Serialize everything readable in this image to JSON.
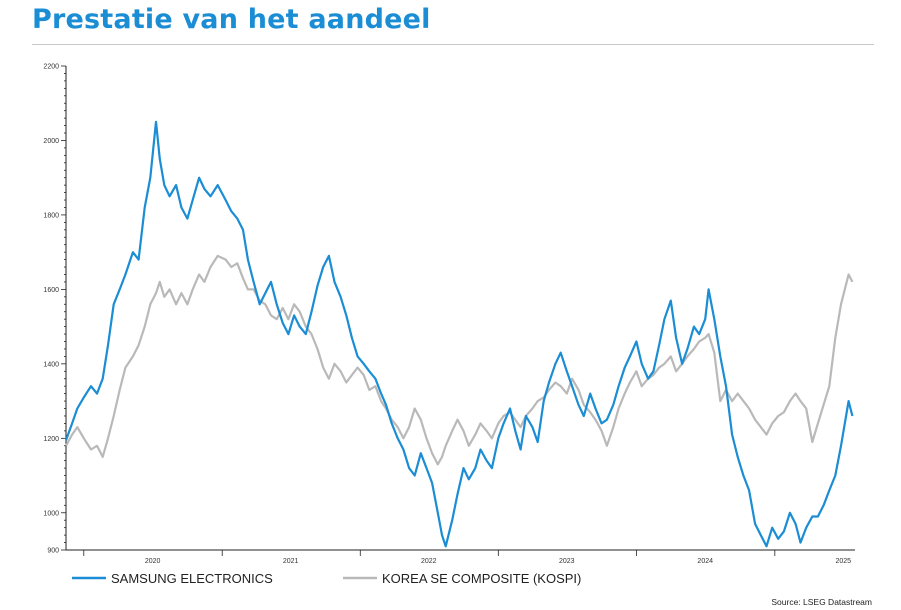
{
  "header": {
    "title": "Prestatie van het aandeel"
  },
  "chart_data": {
    "type": "line",
    "y_ticks": [
      "900",
      "1000",
      "1200",
      "1400",
      "1600",
      "1800",
      "2000",
      "2200"
    ],
    "ylim": [
      900,
      2200
    ],
    "x_ticks": [
      "2020",
      "2021",
      "2022",
      "2023",
      "2024",
      "2025"
    ],
    "xlim": [
      "2019-11-15",
      "2025-08-01"
    ],
    "grid": false,
    "legend_placement": "bottom-left",
    "source": "Source: LSEG Datastream",
    "colors": {
      "samsung": "#1a8dd4",
      "kospi": "#b9b9b9"
    },
    "series": [
      {
        "name": "SAMSUNG ELECTRONICS",
        "color": "#1a8dd4",
        "points": [
          [
            "2019-11-15",
            1195
          ],
          [
            "2019-12-01",
            1240
          ],
          [
            "2019-12-15",
            1280
          ],
          [
            "2020-01-01",
            1310
          ],
          [
            "2020-01-20",
            1340
          ],
          [
            "2020-02-05",
            1320
          ],
          [
            "2020-02-20",
            1360
          ],
          [
            "2020-03-05",
            1450
          ],
          [
            "2020-03-20",
            1560
          ],
          [
            "2020-04-05",
            1600
          ],
          [
            "2020-04-20",
            1640
          ],
          [
            "2020-05-10",
            1700
          ],
          [
            "2020-05-25",
            1680
          ],
          [
            "2020-06-10",
            1820
          ],
          [
            "2020-06-25",
            1900
          ],
          [
            "2020-07-10",
            2050
          ],
          [
            "2020-07-20",
            1950
          ],
          [
            "2020-08-01",
            1880
          ],
          [
            "2020-08-15",
            1850
          ],
          [
            "2020-09-01",
            1880
          ],
          [
            "2020-09-15",
            1820
          ],
          [
            "2020-10-01",
            1790
          ],
          [
            "2020-10-15",
            1840
          ],
          [
            "2020-11-01",
            1900
          ],
          [
            "2020-11-15",
            1870
          ],
          [
            "2020-12-01",
            1850
          ],
          [
            "2020-12-20",
            1880
          ],
          [
            "2021-01-10",
            1840
          ],
          [
            "2021-01-25",
            1810
          ],
          [
            "2021-02-10",
            1790
          ],
          [
            "2021-02-25",
            1760
          ],
          [
            "2021-03-10",
            1680
          ],
          [
            "2021-03-25",
            1620
          ],
          [
            "2021-04-10",
            1560
          ],
          [
            "2021-04-25",
            1590
          ],
          [
            "2021-05-10",
            1620
          ],
          [
            "2021-05-25",
            1560
          ],
          [
            "2021-06-10",
            1510
          ],
          [
            "2021-06-25",
            1480
          ],
          [
            "2021-07-10",
            1530
          ],
          [
            "2021-07-25",
            1500
          ],
          [
            "2021-08-10",
            1480
          ],
          [
            "2021-08-25",
            1540
          ],
          [
            "2021-09-10",
            1610
          ],
          [
            "2021-09-25",
            1660
          ],
          [
            "2021-10-10",
            1690
          ],
          [
            "2021-10-25",
            1620
          ],
          [
            "2021-11-10",
            1580
          ],
          [
            "2021-11-25",
            1530
          ],
          [
            "2021-12-10",
            1470
          ],
          [
            "2021-12-25",
            1420
          ],
          [
            "2022-01-10",
            1400
          ],
          [
            "2022-01-25",
            1380
          ],
          [
            "2022-02-10",
            1360
          ],
          [
            "2022-02-25",
            1320
          ],
          [
            "2022-03-10",
            1290
          ],
          [
            "2022-03-25",
            1240
          ],
          [
            "2022-04-10",
            1200
          ],
          [
            "2022-04-25",
            1170
          ],
          [
            "2022-05-10",
            1120
          ],
          [
            "2022-05-25",
            1100
          ],
          [
            "2022-06-10",
            1160
          ],
          [
            "2022-06-25",
            1120
          ],
          [
            "2022-07-10",
            1080
          ],
          [
            "2022-07-25",
            1000
          ],
          [
            "2022-08-05",
            940
          ],
          [
            "2022-08-15",
            910
          ],
          [
            "2022-09-01",
            980
          ],
          [
            "2022-09-15",
            1050
          ],
          [
            "2022-10-01",
            1120
          ],
          [
            "2022-10-15",
            1090
          ],
          [
            "2022-11-01",
            1120
          ],
          [
            "2022-11-15",
            1170
          ],
          [
            "2022-12-01",
            1140
          ],
          [
            "2022-12-15",
            1120
          ],
          [
            "2023-01-01",
            1200
          ],
          [
            "2023-01-15",
            1240
          ],
          [
            "2023-02-01",
            1280
          ],
          [
            "2023-02-15",
            1220
          ],
          [
            "2023-03-01",
            1170
          ],
          [
            "2023-03-15",
            1260
          ],
          [
            "2023-04-01",
            1230
          ],
          [
            "2023-04-15",
            1190
          ],
          [
            "2023-05-01",
            1300
          ],
          [
            "2023-05-15",
            1350
          ],
          [
            "2023-06-01",
            1400
          ],
          [
            "2023-06-15",
            1430
          ],
          [
            "2023-07-01",
            1380
          ],
          [
            "2023-07-15",
            1340
          ],
          [
            "2023-08-01",
            1290
          ],
          [
            "2023-08-15",
            1260
          ],
          [
            "2023-09-01",
            1320
          ],
          [
            "2023-09-15",
            1280
          ],
          [
            "2023-10-01",
            1240
          ],
          [
            "2023-10-15",
            1250
          ],
          [
            "2023-11-01",
            1290
          ],
          [
            "2023-11-15",
            1340
          ],
          [
            "2023-12-01",
            1390
          ],
          [
            "2023-12-15",
            1420
          ],
          [
            "2024-01-01",
            1460
          ],
          [
            "2024-01-15",
            1400
          ],
          [
            "2024-02-01",
            1360
          ],
          [
            "2024-02-15",
            1380
          ],
          [
            "2024-03-01",
            1450
          ],
          [
            "2024-03-15",
            1520
          ],
          [
            "2024-04-01",
            1570
          ],
          [
            "2024-04-15",
            1470
          ],
          [
            "2024-05-01",
            1400
          ],
          [
            "2024-05-15",
            1440
          ],
          [
            "2024-06-01",
            1500
          ],
          [
            "2024-06-15",
            1480
          ],
          [
            "2024-07-01",
            1520
          ],
          [
            "2024-07-10",
            1600
          ],
          [
            "2024-07-25",
            1520
          ],
          [
            "2024-08-10",
            1420
          ],
          [
            "2024-08-25",
            1340
          ],
          [
            "2024-09-10",
            1210
          ],
          [
            "2024-09-25",
            1150
          ],
          [
            "2024-10-10",
            1100
          ],
          [
            "2024-10-25",
            1060
          ],
          [
            "2024-11-10",
            970
          ],
          [
            "2024-11-25",
            940
          ],
          [
            "2024-12-10",
            910
          ],
          [
            "2024-12-25",
            960
          ],
          [
            "2025-01-10",
            930
          ],
          [
            "2025-01-25",
            950
          ],
          [
            "2025-02-10",
            1000
          ],
          [
            "2025-02-25",
            970
          ],
          [
            "2025-03-10",
            920
          ],
          [
            "2025-03-25",
            960
          ],
          [
            "2025-04-10",
            990
          ],
          [
            "2025-04-25",
            990
          ],
          [
            "2025-05-10",
            1020
          ],
          [
            "2025-05-25",
            1060
          ],
          [
            "2025-06-10",
            1100
          ],
          [
            "2025-06-25",
            1180
          ],
          [
            "2025-07-05",
            1240
          ],
          [
            "2025-07-15",
            1300
          ],
          [
            "2025-07-25",
            1260
          ]
        ]
      },
      {
        "name": "KOREA SE COMPOSITE (KOSPI)",
        "color": "#b9b9b9",
        "points": [
          [
            "2019-11-15",
            1180
          ],
          [
            "2019-12-01",
            1210
          ],
          [
            "2019-12-15",
            1230
          ],
          [
            "2020-01-01",
            1200
          ],
          [
            "2020-01-20",
            1170
          ],
          [
            "2020-02-05",
            1180
          ],
          [
            "2020-02-20",
            1150
          ],
          [
            "2020-03-05",
            1200
          ],
          [
            "2020-03-20",
            1260
          ],
          [
            "2020-04-05",
            1330
          ],
          [
            "2020-04-20",
            1390
          ],
          [
            "2020-05-10",
            1420
          ],
          [
            "2020-05-25",
            1450
          ],
          [
            "2020-06-10",
            1500
          ],
          [
            "2020-06-25",
            1560
          ],
          [
            "2020-07-10",
            1590
          ],
          [
            "2020-07-20",
            1620
          ],
          [
            "2020-08-01",
            1580
          ],
          [
            "2020-08-15",
            1600
          ],
          [
            "2020-09-01",
            1560
          ],
          [
            "2020-09-15",
            1590
          ],
          [
            "2020-10-01",
            1560
          ],
          [
            "2020-10-15",
            1600
          ],
          [
            "2020-11-01",
            1640
          ],
          [
            "2020-11-15",
            1620
          ],
          [
            "2020-12-01",
            1660
          ],
          [
            "2020-12-20",
            1690
          ],
          [
            "2021-01-10",
            1680
          ],
          [
            "2021-01-25",
            1660
          ],
          [
            "2021-02-10",
            1670
          ],
          [
            "2021-02-25",
            1630
          ],
          [
            "2021-03-10",
            1600
          ],
          [
            "2021-03-25",
            1600
          ],
          [
            "2021-04-10",
            1570
          ],
          [
            "2021-04-25",
            1560
          ],
          [
            "2021-05-10",
            1530
          ],
          [
            "2021-05-25",
            1520
          ],
          [
            "2021-06-10",
            1550
          ],
          [
            "2021-06-25",
            1520
          ],
          [
            "2021-07-10",
            1560
          ],
          [
            "2021-07-25",
            1540
          ],
          [
            "2021-08-10",
            1500
          ],
          [
            "2021-08-25",
            1480
          ],
          [
            "2021-09-10",
            1440
          ],
          [
            "2021-09-25",
            1390
          ],
          [
            "2021-10-10",
            1360
          ],
          [
            "2021-10-25",
            1400
          ],
          [
            "2021-11-10",
            1380
          ],
          [
            "2021-11-25",
            1350
          ],
          [
            "2021-12-10",
            1370
          ],
          [
            "2021-12-25",
            1390
          ],
          [
            "2022-01-10",
            1370
          ],
          [
            "2022-01-25",
            1330
          ],
          [
            "2022-02-10",
            1340
          ],
          [
            "2022-02-25",
            1300
          ],
          [
            "2022-03-10",
            1280
          ],
          [
            "2022-03-25",
            1250
          ],
          [
            "2022-04-10",
            1230
          ],
          [
            "2022-04-25",
            1200
          ],
          [
            "2022-05-10",
            1230
          ],
          [
            "2022-05-25",
            1280
          ],
          [
            "2022-06-10",
            1250
          ],
          [
            "2022-06-25",
            1200
          ],
          [
            "2022-07-10",
            1160
          ],
          [
            "2022-07-25",
            1130
          ],
          [
            "2022-08-05",
            1150
          ],
          [
            "2022-08-15",
            1180
          ],
          [
            "2022-09-01",
            1220
          ],
          [
            "2022-09-15",
            1250
          ],
          [
            "2022-10-01",
            1220
          ],
          [
            "2022-10-15",
            1180
          ],
          [
            "2022-11-01",
            1210
          ],
          [
            "2022-11-15",
            1240
          ],
          [
            "2022-12-01",
            1220
          ],
          [
            "2022-12-15",
            1200
          ],
          [
            "2023-01-01",
            1240
          ],
          [
            "2023-01-15",
            1260
          ],
          [
            "2023-02-01",
            1270
          ],
          [
            "2023-02-15",
            1250
          ],
          [
            "2023-03-01",
            1230
          ],
          [
            "2023-03-15",
            1260
          ],
          [
            "2023-04-01",
            1280
          ],
          [
            "2023-04-15",
            1300
          ],
          [
            "2023-05-01",
            1310
          ],
          [
            "2023-05-15",
            1330
          ],
          [
            "2023-06-01",
            1350
          ],
          [
            "2023-06-15",
            1340
          ],
          [
            "2023-07-01",
            1320
          ],
          [
            "2023-07-15",
            1360
          ],
          [
            "2023-08-01",
            1330
          ],
          [
            "2023-08-15",
            1290
          ],
          [
            "2023-09-01",
            1270
          ],
          [
            "2023-09-15",
            1250
          ],
          [
            "2023-10-01",
            1220
          ],
          [
            "2023-10-15",
            1180
          ],
          [
            "2023-11-01",
            1230
          ],
          [
            "2023-11-15",
            1280
          ],
          [
            "2023-12-01",
            1320
          ],
          [
            "2023-12-15",
            1350
          ],
          [
            "2024-01-01",
            1380
          ],
          [
            "2024-01-15",
            1340
          ],
          [
            "2024-02-01",
            1360
          ],
          [
            "2024-02-15",
            1370
          ],
          [
            "2024-03-01",
            1390
          ],
          [
            "2024-03-15",
            1400
          ],
          [
            "2024-04-01",
            1420
          ],
          [
            "2024-04-15",
            1380
          ],
          [
            "2024-05-01",
            1400
          ],
          [
            "2024-05-15",
            1420
          ],
          [
            "2024-06-01",
            1440
          ],
          [
            "2024-06-15",
            1460
          ],
          [
            "2024-07-01",
            1470
          ],
          [
            "2024-07-10",
            1480
          ],
          [
            "2024-07-25",
            1430
          ],
          [
            "2024-08-10",
            1300
          ],
          [
            "2024-08-25",
            1330
          ],
          [
            "2024-09-10",
            1300
          ],
          [
            "2024-09-25",
            1320
          ],
          [
            "2024-10-10",
            1300
          ],
          [
            "2024-10-25",
            1280
          ],
          [
            "2024-11-10",
            1250
          ],
          [
            "2024-11-25",
            1230
          ],
          [
            "2024-12-10",
            1210
          ],
          [
            "2024-12-25",
            1240
          ],
          [
            "2025-01-10",
            1260
          ],
          [
            "2025-01-25",
            1270
          ],
          [
            "2025-02-10",
            1300
          ],
          [
            "2025-02-25",
            1320
          ],
          [
            "2025-03-10",
            1300
          ],
          [
            "2025-03-25",
            1280
          ],
          [
            "2025-04-10",
            1190
          ],
          [
            "2025-04-25",
            1240
          ],
          [
            "2025-05-10",
            1290
          ],
          [
            "2025-05-25",
            1340
          ],
          [
            "2025-06-10",
            1470
          ],
          [
            "2025-06-25",
            1560
          ],
          [
            "2025-07-05",
            1600
          ],
          [
            "2025-07-15",
            1640
          ],
          [
            "2025-07-25",
            1620
          ]
        ]
      }
    ]
  }
}
